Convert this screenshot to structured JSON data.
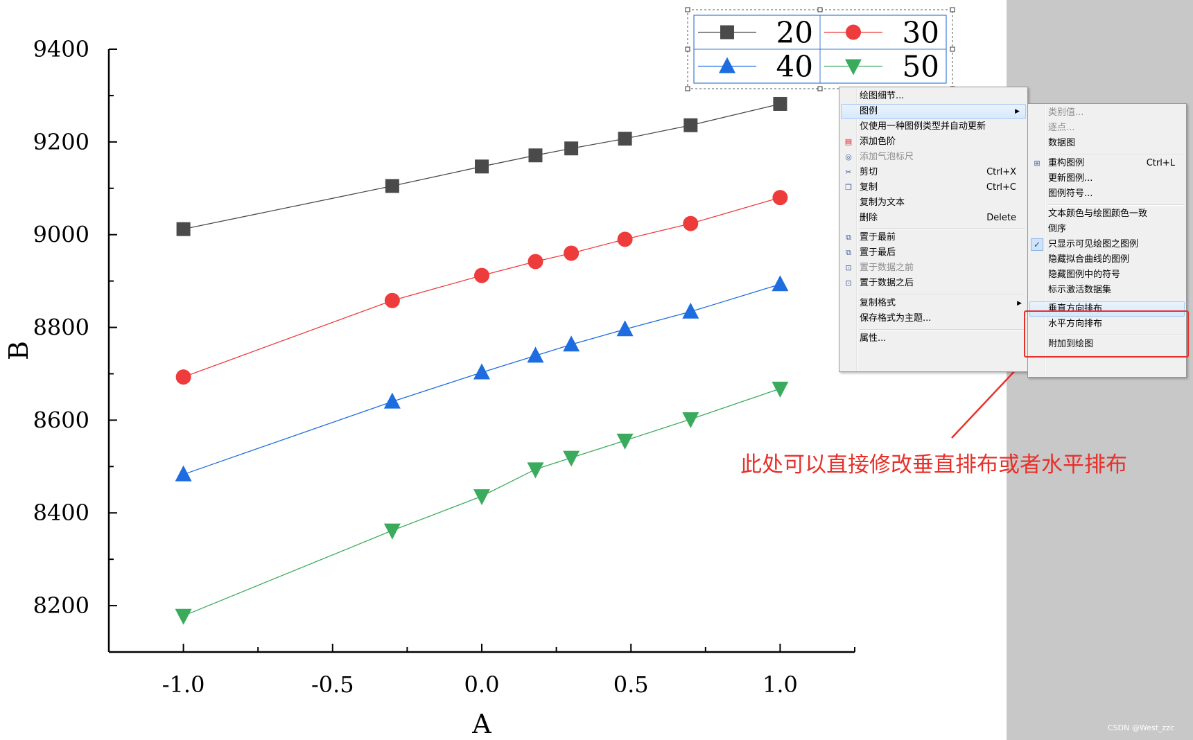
{
  "chart_data": {
    "type": "line",
    "xlabel": "A",
    "ylabel": "B",
    "xlim": [
      -1.25,
      1.25
    ],
    "ylim": [
      8100,
      9400
    ],
    "x_ticks": [
      "-1.0",
      "-0.5",
      "0.0",
      "0.5",
      "1.0"
    ],
    "y_ticks": [
      "8200",
      "8400",
      "8600",
      "8800",
      "9000",
      "9200",
      "9400"
    ],
    "legend_position": "top-right",
    "x": [
      -1.0,
      -0.3,
      0.0,
      0.18,
      0.3,
      0.48,
      0.7,
      1.0
    ],
    "series": [
      {
        "name": "20",
        "color": "#4a4a4a",
        "marker": "square",
        "values": [
          9012,
          9105,
          9147,
          9171,
          9186,
          9207,
          9236,
          9282
        ]
      },
      {
        "name": "30",
        "color": "#ee3b3b",
        "marker": "circle",
        "values": [
          8693,
          8858,
          8912,
          8942,
          8960,
          8990,
          9024,
          9080
        ]
      },
      {
        "name": "40",
        "color": "#1d6ce0",
        "marker": "triangle-up",
        "values": [
          8483,
          8640,
          8703,
          8739,
          8763,
          8796,
          8834,
          8893
        ]
      },
      {
        "name": "50",
        "color": "#3aab5c",
        "marker": "triangle-down",
        "values": [
          8178,
          8362,
          8436,
          8494,
          8519,
          8556,
          8602,
          8668
        ]
      }
    ]
  },
  "context_menu": {
    "items": [
      {
        "label": "绘图细节...",
        "shortcut": "",
        "icon": "",
        "disabled": false,
        "highlighted": false
      },
      {
        "label": "图例",
        "shortcut": "",
        "icon": "",
        "disabled": false,
        "highlighted": true,
        "submenu": true
      },
      {
        "label": "仅使用一种图例类型并自动更新",
        "shortcut": "",
        "icon": "",
        "disabled": false
      },
      {
        "label": "添加色阶",
        "shortcut": "",
        "icon": "color-scale-icon",
        "disabled": false
      },
      {
        "label": "添加气泡标尺",
        "shortcut": "",
        "icon": "bubble-scale-icon",
        "disabled": true
      },
      {
        "label": "剪切",
        "shortcut": "Ctrl+X",
        "icon": "cut-icon",
        "disabled": false
      },
      {
        "label": "复制",
        "shortcut": "Ctrl+C",
        "icon": "copy-icon",
        "disabled": false
      },
      {
        "label": "复制为文本",
        "shortcut": "",
        "icon": "",
        "disabled": false
      },
      {
        "label": "删除",
        "shortcut": "Delete",
        "icon": "",
        "disabled": false
      },
      {
        "label": "置于最前",
        "shortcut": "",
        "icon": "bring-front-icon",
        "disabled": false
      },
      {
        "label": "置于最后",
        "shortcut": "",
        "icon": "send-back-icon",
        "disabled": false
      },
      {
        "label": "置于数据之前",
        "shortcut": "",
        "icon": "before-data-icon",
        "disabled": true
      },
      {
        "label": "置于数据之后",
        "shortcut": "",
        "icon": "after-data-icon",
        "disabled": false
      },
      {
        "label": "复制格式",
        "shortcut": "",
        "icon": "",
        "disabled": false,
        "submenu": true
      },
      {
        "label": "保存格式为主题...",
        "shortcut": "",
        "icon": "",
        "disabled": false
      },
      {
        "label": "属性...",
        "shortcut": "",
        "icon": "",
        "disabled": false
      }
    ]
  },
  "legend_submenu": {
    "items": [
      {
        "label": "类别值...",
        "shortcut": "",
        "disabled": true
      },
      {
        "label": "逐点...",
        "shortcut": "",
        "disabled": true
      },
      {
        "label": "数据图",
        "shortcut": "",
        "disabled": false
      },
      {
        "label": "重构图例",
        "shortcut": "Ctrl+L",
        "disabled": false,
        "icon": "rebuild-legend-icon"
      },
      {
        "label": "更新图例...",
        "shortcut": "",
        "disabled": false
      },
      {
        "label": "图例符号...",
        "shortcut": "",
        "disabled": false
      },
      {
        "label": "文本颜色与绘图颜色一致",
        "shortcut": "",
        "disabled": false
      },
      {
        "label": "倒序",
        "shortcut": "",
        "disabled": false
      },
      {
        "label": "只显示可见绘图之图例",
        "shortcut": "",
        "disabled": false,
        "checked": true
      },
      {
        "label": "隐藏拟合曲线的图例",
        "shortcut": "",
        "disabled": false
      },
      {
        "label": "隐藏图例中的符号",
        "shortcut": "",
        "disabled": false
      },
      {
        "label": "标示激活数据集",
        "shortcut": "",
        "disabled": false
      },
      {
        "label": "垂直方向排布",
        "shortcut": "",
        "disabled": false,
        "highlighted": true
      },
      {
        "label": "水平方向排布",
        "shortcut": "",
        "disabled": false
      },
      {
        "label": "附加到绘图",
        "shortcut": "",
        "disabled": false
      }
    ]
  },
  "annotation": {
    "text": "此处可以直接修改垂直排布或者水平排布",
    "color": "#e8302a"
  },
  "watermark": "CSDN @West_zzc"
}
